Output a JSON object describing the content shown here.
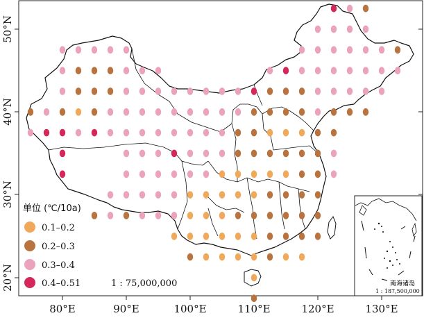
{
  "map": {
    "legend_title": "单位 (℃/10a)",
    "scale": "1 : 75,000,000",
    "inset_title": "南海诸岛",
    "inset_scale": "1 : 187,500,000",
    "x_ticks": [
      "80°E",
      "90°E",
      "100°E",
      "110°E",
      "120°E",
      "130°E"
    ],
    "y_ticks": [
      "50°N",
      "40°N",
      "30°N",
      "20°N"
    ],
    "classes": [
      {
        "label": "0.1–0.2",
        "color": "#f0a85a"
      },
      {
        "label": "0.2–0.3",
        "color": "#b8733f"
      },
      {
        "label": "0.3–0.4",
        "color": "#eba3bd"
      },
      {
        "label": "0.4–0.51",
        "color": "#d4285a"
      }
    ]
  },
  "stations": [
    [
      "52.5",
      "122.5",
      3
    ],
    [
      "52.5",
      "127.5",
      1
    ],
    [
      "52.5",
      "125",
      2
    ],
    [
      "50",
      "122.5",
      2
    ],
    [
      "50",
      "120",
      2
    ],
    [
      "50",
      "125",
      2
    ],
    [
      "50",
      "127.5",
      2
    ],
    [
      "47.5",
      "80",
      2
    ],
    [
      "47.5",
      "82.5",
      2
    ],
    [
      "47.5",
      "85",
      2
    ],
    [
      "47.5",
      "87.5",
      2
    ],
    [
      "47.5",
      "90",
      2
    ],
    [
      "47.5",
      "117.5",
      2
    ],
    [
      "47.5",
      "120",
      2
    ],
    [
      "47.5",
      "122.5",
      2
    ],
    [
      "47.5",
      "125",
      2
    ],
    [
      "47.5",
      "127.5",
      2
    ],
    [
      "47.5",
      "130",
      2
    ],
    [
      "47.5",
      "132.5",
      1
    ],
    [
      "45",
      "80",
      2
    ],
    [
      "45",
      "82.5",
      1
    ],
    [
      "45",
      "85",
      1
    ],
    [
      "45",
      "87.5",
      1
    ],
    [
      "45",
      "90",
      2
    ],
    [
      "45",
      "92.5",
      2
    ],
    [
      "45",
      "95",
      2
    ],
    [
      "45",
      "112.5",
      2
    ],
    [
      "45",
      "115",
      3
    ],
    [
      "45",
      "117.5",
      2
    ],
    [
      "45",
      "120",
      2
    ],
    [
      "45",
      "122.5",
      2
    ],
    [
      "45",
      "125",
      2
    ],
    [
      "45",
      "127.5",
      2
    ],
    [
      "45",
      "130",
      2
    ],
    [
      "45",
      "132.5",
      2
    ],
    [
      "42.5",
      "80",
      2
    ],
    [
      "42.5",
      "82.5",
      1
    ],
    [
      "42.5",
      "85",
      1
    ],
    [
      "42.5",
      "87.5",
      1
    ],
    [
      "42.5",
      "90",
      2
    ],
    [
      "42.5",
      "92.5",
      2
    ],
    [
      "42.5",
      "95",
      2
    ],
    [
      "42.5",
      "97.5",
      2
    ],
    [
      "42.5",
      "100",
      2
    ],
    [
      "42.5",
      "102.5",
      2
    ],
    [
      "42.5",
      "105",
      2
    ],
    [
      "42.5",
      "107.5",
      2
    ],
    [
      "42.5",
      "110",
      3
    ],
    [
      "42.5",
      "112.5",
      1
    ],
    [
      "42.5",
      "115",
      1
    ],
    [
      "42.5",
      "117.5",
      1
    ],
    [
      "42.5",
      "120",
      2
    ],
    [
      "42.5",
      "122.5",
      2
    ],
    [
      "42.5",
      "125",
      2
    ],
    [
      "42.5",
      "127.5",
      2
    ],
    [
      "42.5",
      "130",
      2
    ],
    [
      "40",
      "75",
      1
    ],
    [
      "40",
      "77.5",
      2
    ],
    [
      "40",
      "80",
      1
    ],
    [
      "40",
      "82.5",
      0
    ],
    [
      "40",
      "85",
      1
    ],
    [
      "40",
      "87.5",
      2
    ],
    [
      "40",
      "90",
      2
    ],
    [
      "40",
      "92.5",
      2
    ],
    [
      "40",
      "95",
      2
    ],
    [
      "40",
      "97.5",
      2
    ],
    [
      "40",
      "100",
      2
    ],
    [
      "40",
      "102.5",
      2
    ],
    [
      "40",
      "105",
      2
    ],
    [
      "40",
      "107.5",
      2
    ],
    [
      "40",
      "110",
      1
    ],
    [
      "40",
      "112.5",
      1
    ],
    [
      "40",
      "115",
      1
    ],
    [
      "40",
      "117.5",
      1
    ],
    [
      "40",
      "120",
      2
    ],
    [
      "40",
      "122.5",
      1
    ],
    [
      "40",
      "125",
      1
    ],
    [
      "40",
      "127.5",
      1
    ],
    [
      "37.5",
      "75",
      2
    ],
    [
      "37.5",
      "77.5",
      3
    ],
    [
      "37.5",
      "80",
      3
    ],
    [
      "37.5",
      "82.5",
      2
    ],
    [
      "37.5",
      "85",
      3
    ],
    [
      "37.5",
      "87.5",
      2
    ],
    [
      "37.5",
      "90",
      2
    ],
    [
      "37.5",
      "92.5",
      2
    ],
    [
      "37.5",
      "95",
      2
    ],
    [
      "37.5",
      "97.5",
      2
    ],
    [
      "37.5",
      "100",
      2
    ],
    [
      "37.5",
      "102.5",
      2
    ],
    [
      "37.5",
      "105",
      2
    ],
    [
      "37.5",
      "107.5",
      1
    ],
    [
      "37.5",
      "110",
      1
    ],
    [
      "37.5",
      "112.5",
      0
    ],
    [
      "37.5",
      "115",
      0
    ],
    [
      "37.5",
      "117.5",
      0
    ],
    [
      "37.5",
      "120",
      1
    ],
    [
      "37.5",
      "122.5",
      1
    ],
    [
      "35",
      "80",
      3
    ],
    [
      "35",
      "90",
      2
    ],
    [
      "35",
      "92.5",
      2
    ],
    [
      "35",
      "95",
      2
    ],
    [
      "35",
      "97.5",
      3
    ],
    [
      "35",
      "100",
      2
    ],
    [
      "35",
      "102.5",
      2
    ],
    [
      "35",
      "105",
      2
    ],
    [
      "35",
      "107.5",
      1
    ],
    [
      "35",
      "110",
      1
    ],
    [
      "35",
      "112.5",
      1
    ],
    [
      "35",
      "115",
      1
    ],
    [
      "35",
      "117.5",
      1
    ],
    [
      "35",
      "120",
      1
    ],
    [
      "35",
      "122.5",
      2
    ],
    [
      "32.5",
      "80",
      3
    ],
    [
      "32.5",
      "90",
      2
    ],
    [
      "32.5",
      "92.5",
      2
    ],
    [
      "32.5",
      "95",
      2
    ],
    [
      "32.5",
      "97.5",
      2
    ],
    [
      "32.5",
      "100",
      2
    ],
    [
      "32.5",
      "102.5",
      2
    ],
    [
      "32.5",
      "105",
      0
    ],
    [
      "32.5",
      "107.5",
      0
    ],
    [
      "32.5",
      "110",
      0
    ],
    [
      "32.5",
      "112.5",
      0
    ],
    [
      "32.5",
      "115",
      0
    ],
    [
      "32.5",
      "117.5",
      1
    ],
    [
      "32.5",
      "120",
      1
    ],
    [
      "32.5",
      "122.5",
      2
    ],
    [
      "30",
      "87.5",
      2
    ],
    [
      "30",
      "90",
      2
    ],
    [
      "30",
      "92.5",
      2
    ],
    [
      "30",
      "95",
      2
    ],
    [
      "30",
      "97.5",
      2
    ],
    [
      "30",
      "100",
      0
    ],
    [
      "30",
      "102.5",
      0
    ],
    [
      "30",
      "105",
      0
    ],
    [
      "30",
      "107.5",
      0
    ],
    [
      "30",
      "110",
      0
    ],
    [
      "30",
      "112.5",
      1
    ],
    [
      "30",
      "115",
      1
    ],
    [
      "30",
      "117.5",
      1
    ],
    [
      "30",
      "120",
      1
    ],
    [
      "27.5",
      "85",
      1
    ],
    [
      "27.5",
      "87.5",
      2
    ],
    [
      "27.5",
      "90",
      1
    ],
    [
      "27.5",
      "92.5",
      2
    ],
    [
      "27.5",
      "95",
      2
    ],
    [
      "27.5",
      "97.5",
      2
    ],
    [
      "27.5",
      "100",
      0
    ],
    [
      "27.5",
      "102.5",
      0
    ],
    [
      "27.5",
      "105",
      0
    ],
    [
      "27.5",
      "107.5",
      1
    ],
    [
      "27.5",
      "110",
      1
    ],
    [
      "27.5",
      "112.5",
      1
    ],
    [
      "27.5",
      "115",
      1
    ],
    [
      "27.5",
      "117.5",
      1
    ],
    [
      "27.5",
      "120",
      1
    ],
    [
      "25",
      "97.5",
      0
    ],
    [
      "25",
      "100",
      0
    ],
    [
      "25",
      "102.5",
      0
    ],
    [
      "25",
      "105",
      0
    ],
    [
      "25",
      "107.5",
      0
    ],
    [
      "25",
      "110",
      0
    ],
    [
      "25",
      "112.5",
      1
    ],
    [
      "25",
      "115",
      1
    ],
    [
      "25",
      "117.5",
      1
    ],
    [
      "25",
      "120",
      1
    ],
    [
      "22.5",
      "100",
      1
    ],
    [
      "22.5",
      "102.5",
      0
    ],
    [
      "22.5",
      "105",
      0
    ],
    [
      "22.5",
      "107.5",
      0
    ],
    [
      "22.5",
      "110",
      0
    ],
    [
      "22.5",
      "112.5",
      1
    ],
    [
      "22.5",
      "115",
      0
    ],
    [
      "22.5",
      "117.5",
      0
    ],
    [
      "20",
      "110",
      0
    ],
    [
      "17.5",
      "110",
      1
    ]
  ]
}
